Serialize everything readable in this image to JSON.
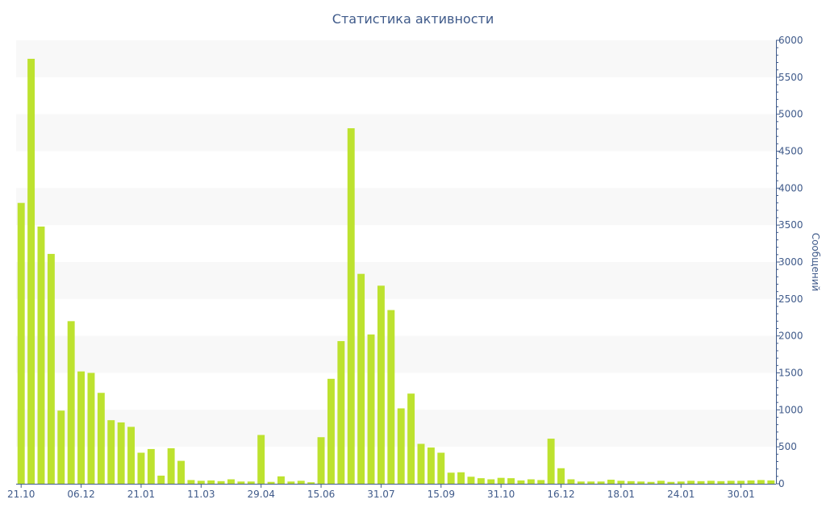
{
  "chart_data": {
    "type": "bar",
    "title": "Статистика активности",
    "ylabel": "Сообщений",
    "xlabel": "",
    "ylim": [
      0,
      6000
    ],
    "yticks": [
      0,
      500,
      1000,
      1500,
      2000,
      2500,
      3000,
      3500,
      4000,
      4500,
      5000,
      5500,
      6000
    ],
    "y_axis_side": "right",
    "grid": "alternating horizontal bands",
    "x_tick_labels": [
      {
        "bar_index": 0,
        "label": "21.10"
      },
      {
        "bar_index": 6,
        "label": "06.12"
      },
      {
        "bar_index": 12,
        "label": "21.01"
      },
      {
        "bar_index": 18,
        "label": "11.03"
      },
      {
        "bar_index": 24,
        "label": "29.04"
      },
      {
        "bar_index": 30,
        "label": "15.06"
      },
      {
        "bar_index": 36,
        "label": "31.07"
      },
      {
        "bar_index": 42,
        "label": "15.09"
      },
      {
        "bar_index": 48,
        "label": "31.10"
      },
      {
        "bar_index": 54,
        "label": "16.12"
      },
      {
        "bar_index": 60,
        "label": "18.01"
      },
      {
        "bar_index": 66,
        "label": "24.01"
      },
      {
        "bar_index": 72,
        "label": "30.01"
      }
    ],
    "values": [
      3800,
      5750,
      3480,
      3110,
      990,
      2200,
      1520,
      1500,
      1230,
      860,
      830,
      770,
      420,
      470,
      110,
      480,
      310,
      50,
      40,
      45,
      35,
      60,
      30,
      30,
      660,
      25,
      100,
      30,
      40,
      20,
      630,
      1420,
      1930,
      4810,
      2840,
      2020,
      2680,
      2350,
      1020,
      1220,
      540,
      490,
      420,
      150,
      155,
      95,
      75,
      60,
      80,
      75,
      45,
      60,
      50,
      610,
      210,
      60,
      30,
      30,
      30,
      55,
      40,
      35,
      30,
      25,
      40,
      25,
      30,
      40,
      35,
      40,
      35,
      40,
      40,
      45,
      50,
      45
    ],
    "colors": {
      "bar": "#bde22f",
      "axis_text": "#3f5a8a",
      "band": "#f8f8f8",
      "axis_line": "#3f5a8a"
    }
  }
}
